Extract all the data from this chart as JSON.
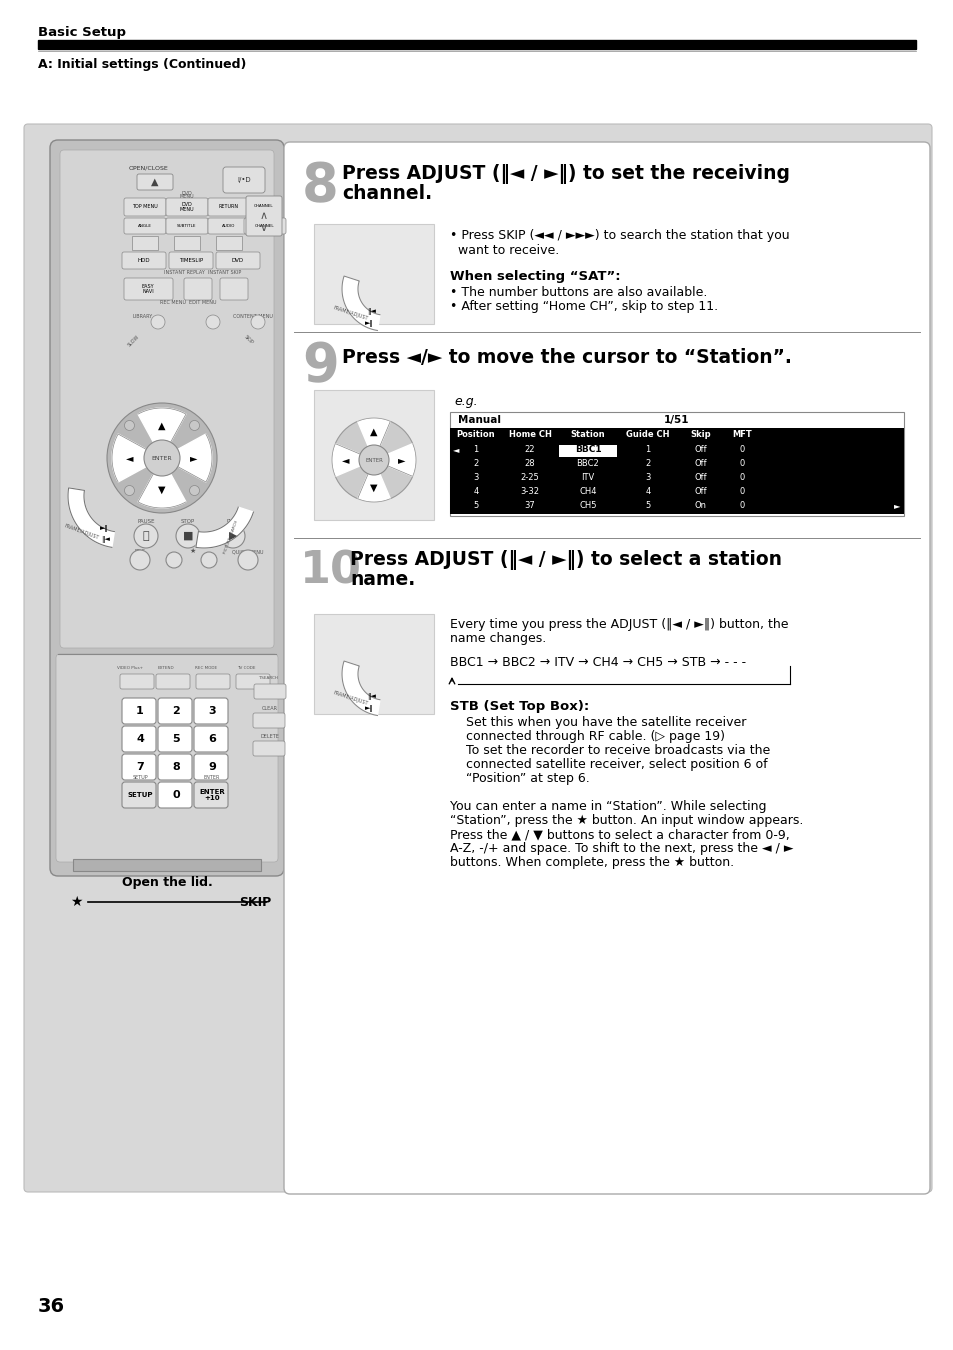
{
  "bg_color": "#ffffff",
  "gray_bg": "#e0e0e0",
  "remote_body": "#c8c8c8",
  "remote_dark": "#555555",
  "header_text": "Basic Setup",
  "subheader_text": "A: Initial settings (Continued)",
  "page_number": "36",
  "step8_title_line1": "Press ADJUST (‖◄ / ►‖) to set the receiving",
  "step8_title_line2": "channel.",
  "step8_bullet1": "• Press SKIP (◄◄ / ►►►) to search the station that you",
  "step8_bullet1b": "  want to receive.",
  "step8_sat_title": "When selecting “SAT”:",
  "step8_sat1": "• The number buttons are also available.",
  "step8_sat2": "• After setting “Home CH”, skip to step 11.",
  "step9_title": "Press ◄/► to move the cursor to “Station”.",
  "step9_eg": "e.g.",
  "table_header1": "Manual",
  "table_header2": "1/51",
  "table_cols": [
    "Position",
    "Home CH",
    "Station",
    "Guide CH",
    "Skip",
    "MFT"
  ],
  "table_rows": [
    [
      "1",
      "22",
      "BBC1",
      "1",
      "Off",
      "0"
    ],
    [
      "2",
      "28",
      "BBC2",
      "2",
      "Off",
      "0"
    ],
    [
      "3",
      "2-25",
      "ITV",
      "3",
      "Off",
      "0"
    ],
    [
      "4",
      "3-32",
      "CH4",
      "4",
      "Off",
      "0"
    ],
    [
      "5",
      "37",
      "CH5",
      "5",
      "On",
      "0"
    ]
  ],
  "table_highlight_row": 0,
  "step10_title_line1": "Press ADJUST (‖◄ / ►‖) to select a station",
  "step10_title_line2": "name.",
  "step10_body1": "Every time you press the ADJUST (‖◄ / ►‖) button, the",
  "step10_body2": "name changes.",
  "step10_chain": "BBC1 → BBC2 → ITV → CH4 → CH5 → STB → - - -",
  "step10_stb_title": "STB (Set Top Box):",
  "step10_stb_lines": [
    "Set this when you have the satellite receiver",
    "connected through RF cable. (▷ page 19)",
    "To set the recorder to receive broadcasts via the",
    "connected satellite receiver, select position 6 of",
    "“Position” at step 6."
  ],
  "step10_note_lines": [
    "You can enter a name in “Station”. While selecting",
    "“Station”, press the ★ button. An input window appears.",
    "Press the ▲ / ▼ buttons to select a character from 0-9,",
    "A-Z, -/+ and space. To shift to the next, press the ◄ / ►",
    "buttons. When complete, press the ★ button."
  ],
  "open_lid_text": "Open the lid.",
  "skip_text": "SKIP",
  "star_symbol": "★"
}
